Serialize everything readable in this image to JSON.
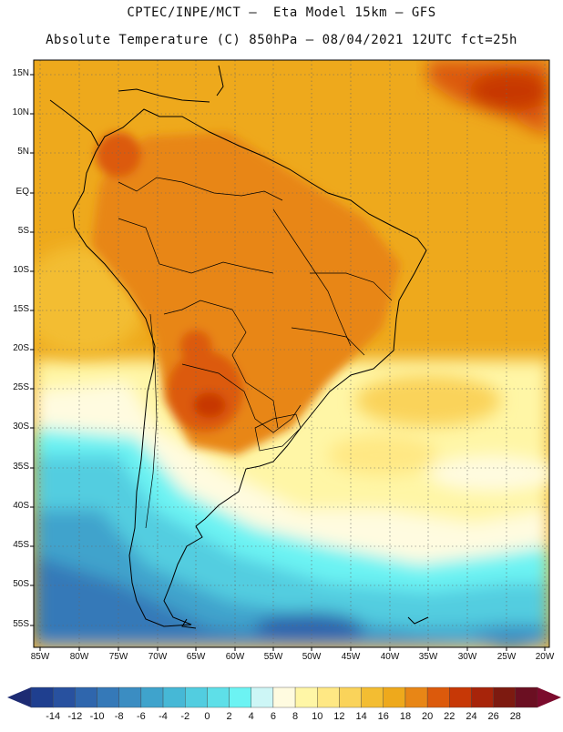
{
  "header": {
    "line1": "CPTEC/INPE/MCT –  Eta Model 15km – GFS",
    "line2": "Absolute Temperature (C) 850hPa – 08/04/2021 12UTC fct=25h"
  },
  "latitude_labels": [
    "15N",
    "10N",
    "5N",
    "EQ",
    "5S",
    "10S",
    "15S",
    "20S",
    "25S",
    "30S",
    "35S",
    "40S",
    "45S",
    "50S",
    "55S"
  ],
  "longitude_labels": [
    "85W",
    "80W",
    "75W",
    "70W",
    "65W",
    "60W",
    "55W",
    "50W",
    "45W",
    "40W",
    "35W",
    "30W",
    "25W",
    "20W"
  ],
  "colorbar": {
    "labels": [
      "-14",
      "-12",
      "-10",
      "-8",
      "-6",
      "-4",
      "-2",
      "0",
      "2",
      "4",
      "6",
      "8",
      "10",
      "12",
      "14",
      "16",
      "18",
      "20",
      "22",
      "24",
      "26",
      "28"
    ],
    "colors": [
      "#1f3f8f",
      "#28519f",
      "#2f66ad",
      "#3579b8",
      "#3b8dc2",
      "#3fa3cc",
      "#46b8d6",
      "#52cde0",
      "#5edfe8",
      "#6cf3f3",
      "#cdf6f6",
      "#fffbe0",
      "#fff6a6",
      "#ffe884",
      "#fad35a",
      "#f3bd32",
      "#eea91c",
      "#e88616",
      "#dc5a0c",
      "#c73806",
      "#a7240a",
      "#7d1a10",
      "#6b0f22"
    ],
    "arrow_left_color": "#1d2b73",
    "arrow_right_color": "#7b0b2d"
  },
  "map_colors": {
    "frame": "#000000",
    "grid": "#666666",
    "coast": "#000000"
  }
}
